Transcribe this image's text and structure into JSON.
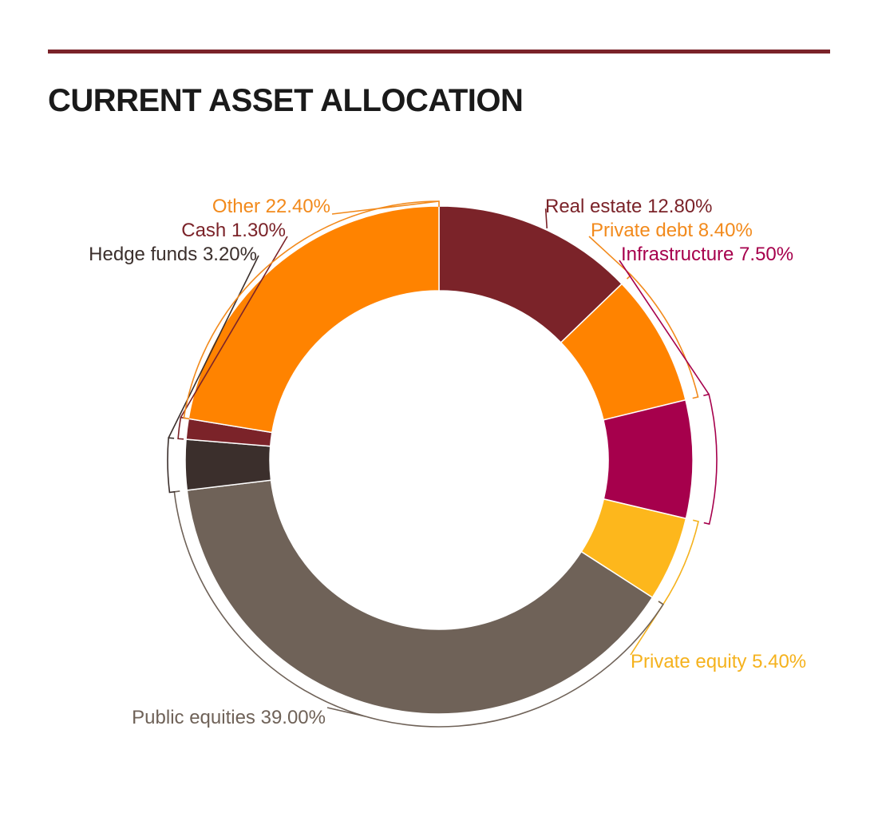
{
  "header": {
    "title": "CURRENT ASSET ALLOCATION",
    "rule_color": "#7b2329"
  },
  "chart_data": {
    "type": "pie",
    "variant": "donut",
    "title": "CURRENT ASSET ALLOCATION",
    "legend": "none",
    "slices": [
      {
        "label": "Real estate",
        "value": 12.8,
        "display": "Real estate 12.80%",
        "color": "#7b2329",
        "label_color": "#7b2329"
      },
      {
        "label": "Private debt",
        "value": 8.4,
        "display": "Private debt 8.40%",
        "color": "#ff8300",
        "label_color": "#f28a1c"
      },
      {
        "label": "Infrastructure",
        "value": 7.5,
        "display": "Infrastructure 7.50%",
        "color": "#a6004c",
        "label_color": "#a6004c"
      },
      {
        "label": "Private equity",
        "value": 5.4,
        "display": "Private equity 5.40%",
        "color": "#fdb71c",
        "label_color": "#f5b21d"
      },
      {
        "label": "Public equities",
        "value": 39.0,
        "display": "Public equities 39.00%",
        "color": "#6f6258",
        "label_color": "#6f6258"
      },
      {
        "label": "Hedge funds",
        "value": 3.2,
        "display": "Hedge funds 3.20%",
        "color": "#3b2f2c",
        "label_color": "#3b2f2c"
      },
      {
        "label": "Cash",
        "value": 1.3,
        "display": "Cash 1.30%",
        "color": "#7b2329",
        "label_color": "#7b2329"
      },
      {
        "label": "Other",
        "value": 22.4,
        "display": "Other 22.40%",
        "color": "#ff8300",
        "label_color": "#f28a1c"
      }
    ]
  }
}
